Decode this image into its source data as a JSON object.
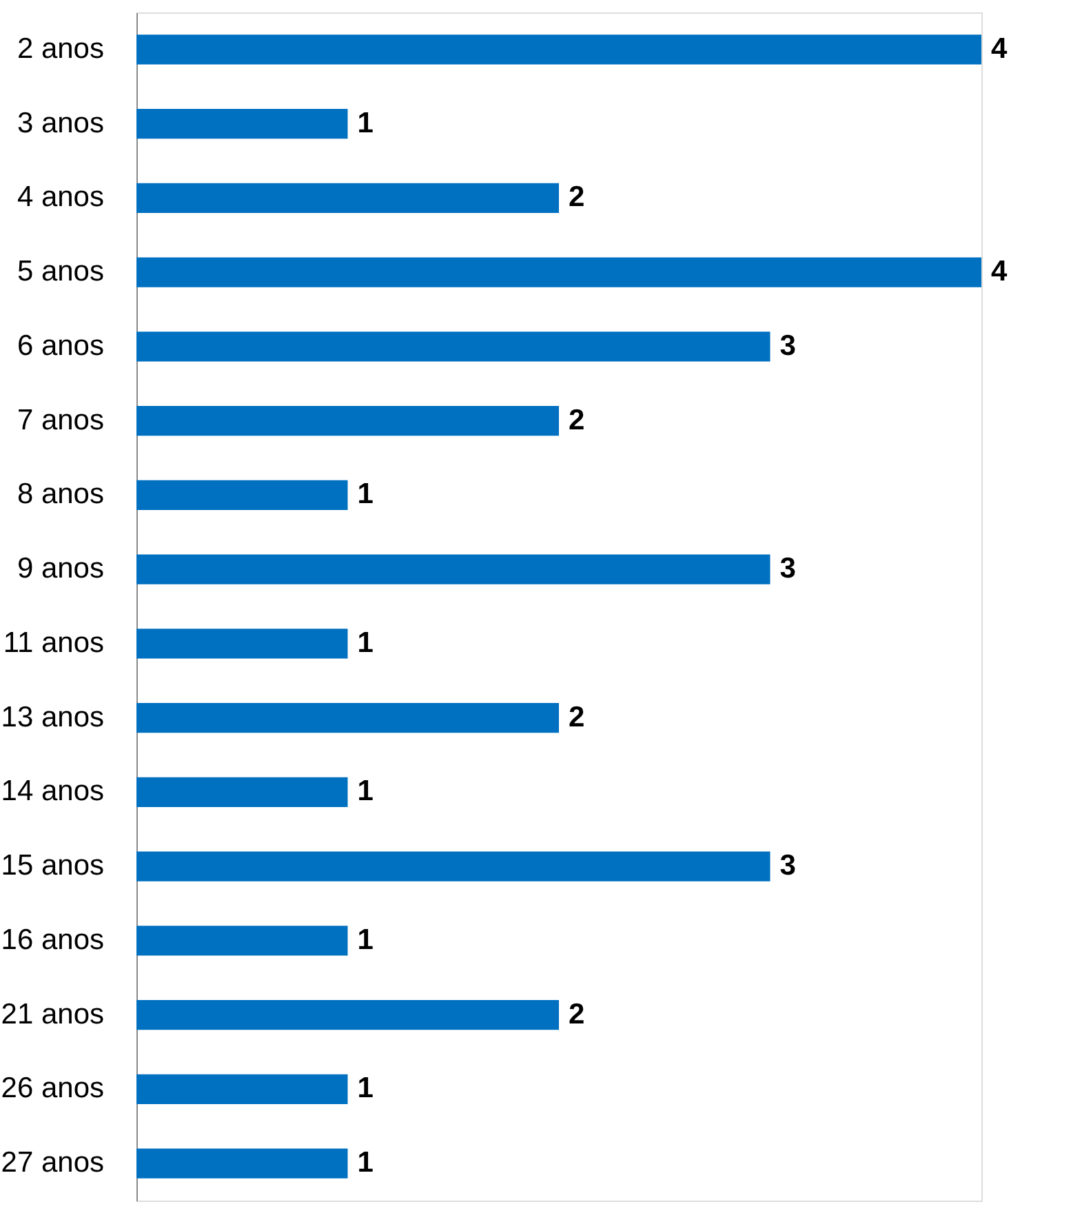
{
  "chart_data": {
    "type": "bar",
    "orientation": "horizontal",
    "categories": [
      "2 anos",
      "3 anos",
      "4 anos",
      "5 anos",
      "6 anos",
      "7 anos",
      "8 anos",
      "9 anos",
      "11 anos",
      "13 anos",
      "14 anos",
      "15 anos",
      "16 anos",
      "21 anos",
      "26 anos",
      "27 anos"
    ],
    "values": [
      4,
      1,
      2,
      4,
      3,
      2,
      1,
      3,
      1,
      2,
      1,
      3,
      1,
      2,
      1,
      1
    ],
    "color": "#0070c0",
    "data_labels": true,
    "tick_labels": "y"
  }
}
